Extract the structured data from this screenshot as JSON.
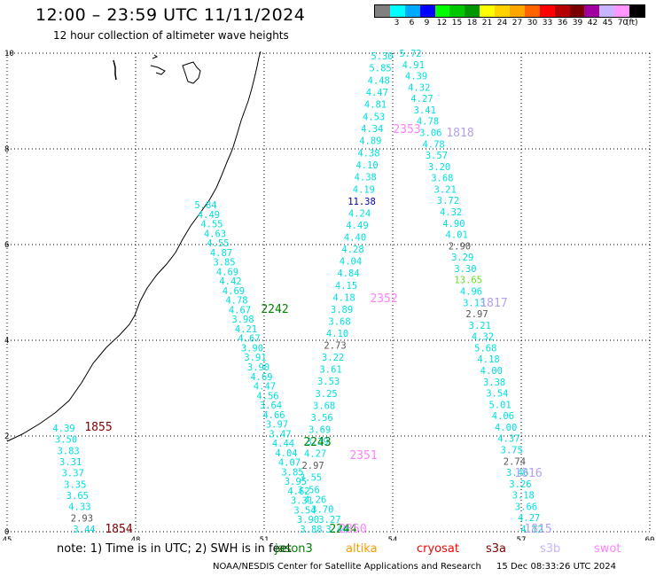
{
  "header": {
    "title": "12:00 – 23:59 UTC 11/11/2024",
    "subtitle": "12 hour collection of altimeter wave heights"
  },
  "color_scale": {
    "unit": "(ft)",
    "swatches": [
      {
        "color": "#808080",
        "label": ""
      },
      {
        "color": "#00ffff",
        "label": "3"
      },
      {
        "color": "#00aaff",
        "label": "6"
      },
      {
        "color": "#0000ff",
        "label": "9"
      },
      {
        "color": "#00ff00",
        "label": "12"
      },
      {
        "color": "#00c800",
        "label": "15"
      },
      {
        "color": "#009600",
        "label": "18"
      },
      {
        "color": "#ffff00",
        "label": "21"
      },
      {
        "color": "#ffd200",
        "label": "24"
      },
      {
        "color": "#ffa500",
        "label": "27"
      },
      {
        "color": "#ff6400",
        "label": "30"
      },
      {
        "color": "#ff0000",
        "label": "33"
      },
      {
        "color": "#b40000",
        "label": "36"
      },
      {
        "color": "#780000",
        "label": "39"
      },
      {
        "color": "#a000a0",
        "label": "42"
      },
      {
        "color": "#c8b4ff",
        "label": "45"
      },
      {
        "color": "#ff96ff",
        "label": "70"
      },
      {
        "color": "#000000",
        "label": ""
      }
    ]
  },
  "map": {
    "x_ticks": [
      "45",
      "48",
      "51",
      "54",
      "57",
      "60"
    ],
    "y_ticks": [
      "0",
      "2",
      "4",
      "6",
      "8",
      "10"
    ],
    "tracks": [
      {
        "id": "track-a",
        "color": "#00e0e0",
        "values": [
          "4.39",
          "3.50",
          "3.83",
          "3.31",
          "3.37",
          "3.35",
          "3.65",
          "4.33",
          "2.93",
          "3.44"
        ],
        "value_colors": {
          "8": "#555555"
        }
      },
      {
        "id": "track-b",
        "color": "#00e0e0",
        "values": [
          "5.84",
          "4.49",
          "4.55",
          "4.63",
          "4.55",
          "4.87",
          "3.85",
          "4.69",
          "4.42",
          "4.69",
          "4.78",
          "4.67",
          "3.98",
          "4.21",
          "4.67",
          "3.90",
          "3.91",
          "3.90",
          "4.69",
          "4.47",
          "4.56",
          "3.64",
          "4.66",
          "3.97",
          "3.47",
          "4.44",
          "4.04",
          "4.07",
          "3.85",
          "3.95",
          "4.62",
          "3.31",
          "3.54",
          "3.90",
          "3.88"
        ]
      },
      {
        "id": "track-c",
        "color": "#00e0e0",
        "values": [
          "5.30",
          "5.85",
          "4.48",
          "4.47",
          "4.81",
          "4.53",
          "4.34",
          "4.89",
          "4.38",
          "4.10",
          "4.38",
          "4.19",
          "11.38",
          "4.24",
          "4.49",
          "4.40",
          "4.28",
          "4.04",
          "4.84",
          "4.15",
          "4.18",
          "3.89",
          "3.68",
          "4.10",
          "2.73",
          "3.22",
          "3.61",
          "3.53",
          "3.25",
          "3.68",
          "3.56",
          "3.69",
          "3.39",
          "4.27",
          "2.97",
          "3.55",
          "3.56",
          "4.26",
          "3.70",
          "3.27",
          "3.44"
        ],
        "value_colors": {
          "12": "#0000aa",
          "24": "#555555",
          "34": "#555555"
        }
      },
      {
        "id": "track-d",
        "color": "#00e0e0",
        "values": [
          "5.72",
          "4.91",
          "4.39",
          "4.32",
          "4.27",
          "3.41",
          "4.78",
          "3.06",
          "4.78",
          "3.57",
          "3.20",
          "3.68",
          "3.21",
          "3.72",
          "4.32",
          "4.90",
          "4.01",
          "2.90",
          "3.29",
          "3.30",
          "13.65",
          "4.96",
          "3.13",
          "2.97",
          "3.21",
          "4.32",
          "5.68",
          "4.18",
          "4.00",
          "3.38",
          "3.54",
          "5.01",
          "4.06",
          "4.00",
          "4.37",
          "3.75",
          "2.74",
          "3.46",
          "3.26",
          "3.18",
          "3.66",
          "4.27",
          "4.12"
        ],
        "value_colors": {
          "17": "#555555",
          "20": "#66dd22",
          "23": "#555555",
          "36": "#555555"
        }
      }
    ],
    "time_labels": [
      {
        "text": "1855",
        "color": "#800000"
      },
      {
        "text": "1854",
        "color": "#800000"
      },
      {
        "text": "2242",
        "color": "#008000"
      },
      {
        "text": "2243",
        "color": "#008000"
      },
      {
        "text": "2244",
        "color": "#008000"
      },
      {
        "text": "2351",
        "color": "#ff80ff"
      },
      {
        "text": "2352",
        "color": "#ff80ff"
      },
      {
        "text": "2353",
        "color": "#ff80ff"
      },
      {
        "text": "2350",
        "color": "#ff80ff"
      },
      {
        "text": "1818",
        "color": "#b4a0f0"
      },
      {
        "text": "1817",
        "color": "#b4a0f0"
      },
      {
        "text": "1816",
        "color": "#b4a0f0"
      },
      {
        "text": "1815",
        "color": "#b4a0f0"
      }
    ]
  },
  "footer": {
    "note": "note:  1) Time is in UTC;  2) SWH is in feet",
    "missions": [
      {
        "name": "jason3",
        "color": "#008000"
      },
      {
        "name": "altika",
        "color": "#ff9900"
      },
      {
        "name": "cryosat",
        "color": "#ff0000"
      },
      {
        "name": "s3a",
        "color": "#800000"
      },
      {
        "name": "s3b",
        "color": "#c8b4ff"
      },
      {
        "name": "swot",
        "color": "#ff80ff"
      }
    ],
    "credit_org": "NOAA/NESDIS Center for Satellite Applications and Research",
    "credit_date": "15 Dec 08:33:26 UTC 2024"
  }
}
